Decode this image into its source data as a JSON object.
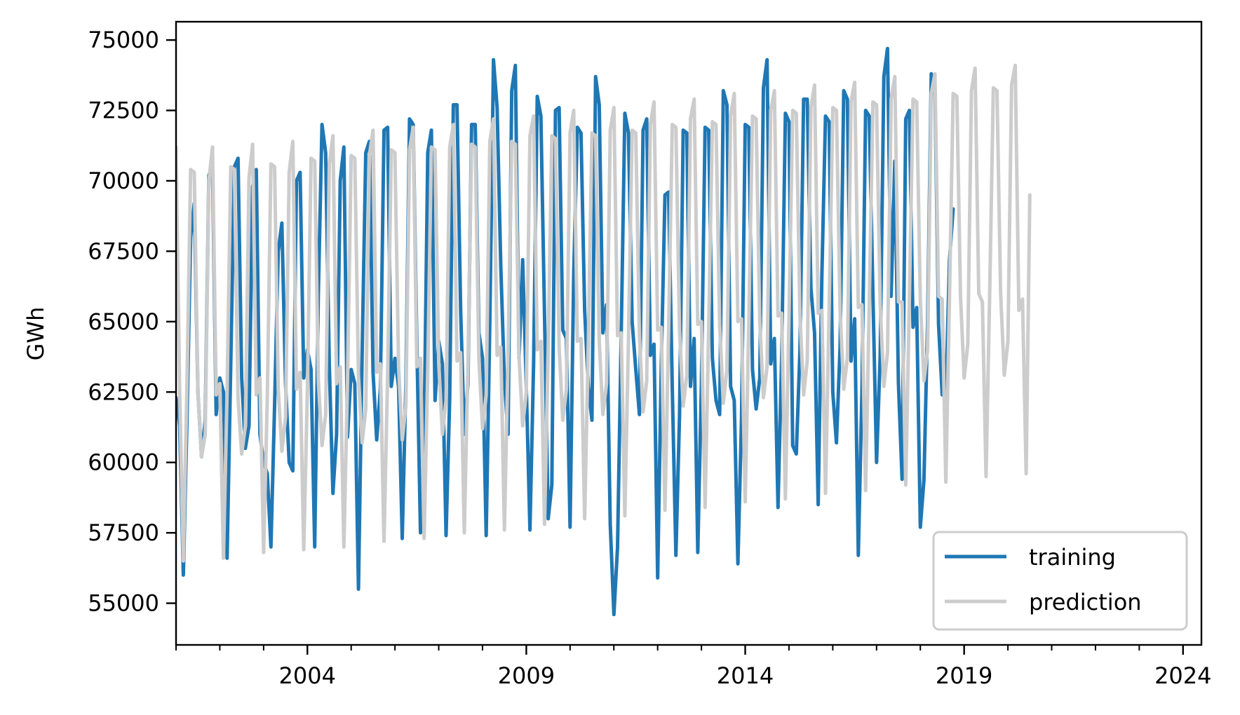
{
  "chart_data": {
    "type": "line",
    "title": "",
    "xlabel": "",
    "ylabel": "GWh",
    "xlim": [
      2001.0,
      2024.42
    ],
    "ylim": [
      53520,
      75650
    ],
    "grid": false,
    "legend_position": "lower right",
    "x_major_ticks": [
      2004,
      2009,
      2014,
      2019,
      2024
    ],
    "x_tick_labels": [
      "2004",
      "2009",
      "2014",
      "2019",
      "2024"
    ],
    "x_minor_ticks": [
      2001,
      2002,
      2003,
      2005,
      2006,
      2007,
      2008,
      2010,
      2011,
      2012,
      2013,
      2015,
      2016,
      2017,
      2018,
      2020,
      2021,
      2022,
      2023
    ],
    "y_ticks": [
      55000,
      57500,
      60000,
      62500,
      65000,
      67500,
      70000,
      72500,
      75000
    ],
    "y_tick_labels": [
      "55000",
      "57500",
      "60000",
      "62500",
      "65000",
      "67500",
      "70000",
      "72500",
      "75000"
    ],
    "x_frequency": "monthly",
    "x_start": "2001-01",
    "series": [
      {
        "name": "training",
        "color": "#1f77b4",
        "line_width": 5,
        "start": "2001-01",
        "values": [
          62300,
          61300,
          56000,
          61500,
          68000,
          69200,
          62500,
          60200,
          61500,
          70200,
          70500,
          61700,
          63000,
          62500,
          56600,
          63500,
          70500,
          70800,
          63000,
          60500,
          61300,
          69800,
          70400,
          61000,
          60000,
          59600,
          57000,
          62000,
          67500,
          68500,
          62800,
          60000,
          59700,
          70000,
          70300,
          63000,
          64000,
          63300,
          57000,
          66000,
          72000,
          71000,
          63500,
          58900,
          61000,
          70000,
          71200,
          60900,
          63300,
          62800,
          55500,
          63800,
          71000,
          71400,
          63200,
          60800,
          62600,
          71800,
          71900,
          62700,
          63700,
          62700,
          57300,
          62800,
          72200,
          72000,
          64300,
          57500,
          61000,
          71000,
          71800,
          62200,
          64300,
          63500,
          57400,
          62300,
          72700,
          72700,
          65400,
          61000,
          62800,
          72000,
          72000,
          64600,
          63700,
          57400,
          65000,
          74300,
          72600,
          67000,
          62900,
          61000,
          73200,
          74100,
          63700,
          67200,
          62700,
          57600,
          63500,
          73000,
          72300,
          65200,
          58000,
          59200,
          72500,
          72600,
          64700,
          64400,
          57700,
          66700,
          71900,
          71700,
          65400,
          62700,
          61500,
          73700,
          72700,
          64600,
          65600,
          57800,
          54600,
          57000,
          64500,
          72400,
          71700,
          65000,
          63300,
          61700,
          71800,
          72200,
          63800,
          64200,
          55900,
          63500,
          69500,
          69600,
          62700,
          56700,
          61700,
          71800,
          71700,
          62700,
          64400,
          56800,
          62800,
          71900,
          71800,
          63700,
          62200,
          61700,
          73200,
          72700,
          62700,
          62200,
          56400,
          61600,
          72000,
          71900,
          63300,
          61900,
          63000,
          73300,
          74300,
          63500,
          64400,
          58400,
          63700,
          72400,
          72100,
          60600,
          60300,
          64000,
          72900,
          72900,
          66200,
          64600,
          58500,
          66600,
          72300,
          72100,
          62500,
          60700,
          64100,
          73200,
          72900,
          63600,
          65100,
          56700,
          62600,
          72500,
          72300,
          66000,
          60000,
          63800,
          73700,
          74700,
          65900,
          70700,
          62800,
          59400,
          72200,
          72500,
          64800,
          65500,
          57700,
          59400,
          65000,
          73800,
          73300,
          64900,
          62400,
          62400,
          67200,
          69000
        ]
      },
      {
        "name": "prediction",
        "color": "#cccccc",
        "line_width": 5,
        "start": "2001-01",
        "values": [
          71200,
          62500,
          56500,
          62800,
          70400,
          70300,
          62500,
          60200,
          61000,
          70000,
          71200,
          62400,
          62800,
          56600,
          62500,
          70500,
          70400,
          62300,
          60300,
          61300,
          70100,
          71300,
          62400,
          63000,
          56800,
          62300,
          70600,
          70500,
          62600,
          60400,
          61600,
          70300,
          71400,
          62600,
          63200,
          56900,
          62600,
          70800,
          70700,
          62900,
          60600,
          61700,
          70600,
          71600,
          62800,
          63400,
          57000,
          62900,
          70900,
          70800,
          63100,
          60700,
          61900,
          70900,
          71800,
          63200,
          63500,
          57200,
          63100,
          71100,
          71000,
          63400,
          60800,
          62000,
          71100,
          71900,
          63400,
          63700,
          57300,
          63300,
          71200,
          71100,
          63500,
          61000,
          62200,
          71200,
          72000,
          63600,
          63900,
          57500,
          63500,
          71300,
          71200,
          63700,
          61200,
          62400,
          71400,
          72200,
          63800,
          64100,
          57600,
          63800,
          71400,
          71300,
          63800,
          61300,
          62500,
          71600,
          72300,
          64000,
          64300,
          57800,
          64000,
          71600,
          71500,
          64100,
          61500,
          62600,
          71700,
          72500,
          64300,
          64400,
          58000,
          64200,
          71700,
          71600,
          64300,
          61700,
          62800,
          71800,
          72600,
          64500,
          64600,
          58100,
          64400,
          71800,
          71700,
          64500,
          61800,
          62900,
          72000,
          72800,
          64700,
          64800,
          58300,
          64600,
          72000,
          71900,
          64700,
          62000,
          63100,
          72200,
          72900,
          64900,
          65000,
          58400,
          64800,
          72100,
          72000,
          64900,
          62100,
          63300,
          72300,
          73100,
          65000,
          65100,
          58600,
          65000,
          72300,
          72200,
          65000,
          62300,
          63400,
          72500,
          73200,
          65200,
          65300,
          58700,
          65200,
          72500,
          72400,
          65200,
          62400,
          63600,
          72600,
          73400,
          65300,
          65400,
          58900,
          65400,
          72600,
          72500,
          65400,
          62600,
          63700,
          72800,
          73500,
          65500,
          65600,
          59000,
          65600,
          72800,
          72700,
          65600,
          62700,
          63900,
          72900,
          73700,
          65700,
          65700,
          59200,
          65800,
          72900,
          72800,
          65800,
          62900,
          64000,
          73100,
          73800,
          65900,
          65800,
          59300,
          65900,
          73100,
          73000,
          65900,
          63000,
          64200,
          73200,
          74000,
          66000,
          65700,
          59500,
          66000,
          73300,
          73200,
          66000,
          63100,
          64300,
          73400,
          74100,
          65400,
          65800,
          59600,
          69500
        ]
      }
    ],
    "legend": [
      {
        "label": "training",
        "color": "#1f77b4"
      },
      {
        "label": "prediction",
        "color": "#cccccc"
      }
    ]
  },
  "axes": {
    "ylabel": "GWh"
  },
  "legend": {
    "items": [
      {
        "label": "training"
      },
      {
        "label": "prediction"
      }
    ]
  }
}
